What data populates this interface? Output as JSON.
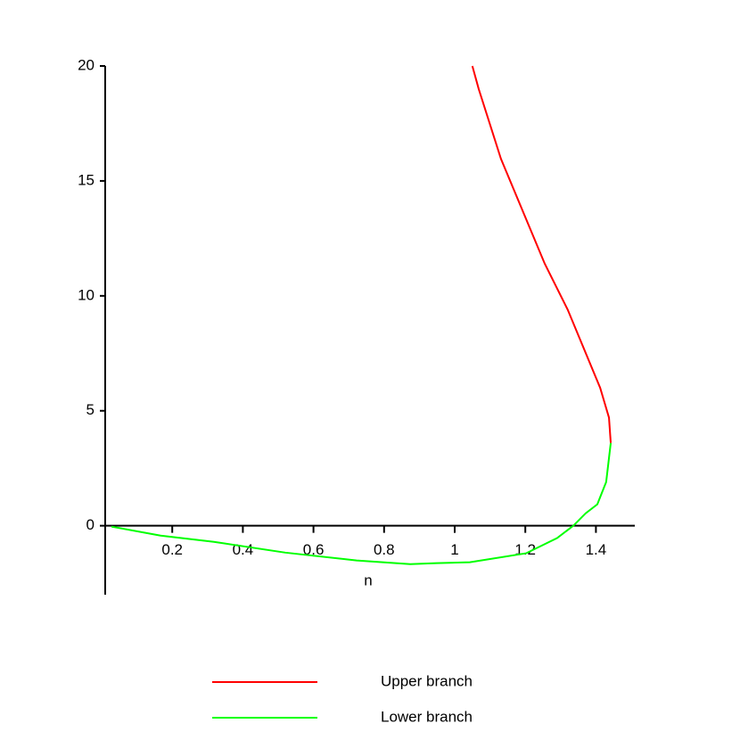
{
  "chart_data": {
    "type": "line",
    "x_label": "n",
    "xlim": [
      0,
      1.5
    ],
    "ylim": [
      -3,
      20
    ],
    "xticks": [
      0.2,
      0.4,
      0.6,
      0.8,
      1,
      1.2,
      1.4
    ],
    "yticks": [
      0,
      5,
      10,
      15,
      20
    ],
    "series": [
      {
        "name": "Upper branch",
        "color": "#ff0000",
        "x": [
          1.05,
          1.068,
          1.131,
          1.255,
          1.32,
          1.412,
          1.437,
          1.442
        ],
        "values": [
          20,
          19.0,
          15.96,
          11.4,
          9.4,
          6.0,
          4.7,
          3.6
        ]
      },
      {
        "name": "Lower branch",
        "color": "#00ff00",
        "x": [
          1.442,
          1.429,
          1.404,
          1.371,
          1.336,
          1.29,
          1.202,
          1.043,
          0.949,
          0.874,
          0.722,
          0.52,
          0.318,
          0.167,
          0.028
        ],
        "values": [
          3.6,
          1.9,
          0.93,
          0.54,
          0,
          -0.54,
          -1.2,
          -1.59,
          -1.63,
          -1.67,
          -1.51,
          -1.17,
          -0.7,
          -0.43,
          -0.04
        ]
      }
    ]
  }
}
